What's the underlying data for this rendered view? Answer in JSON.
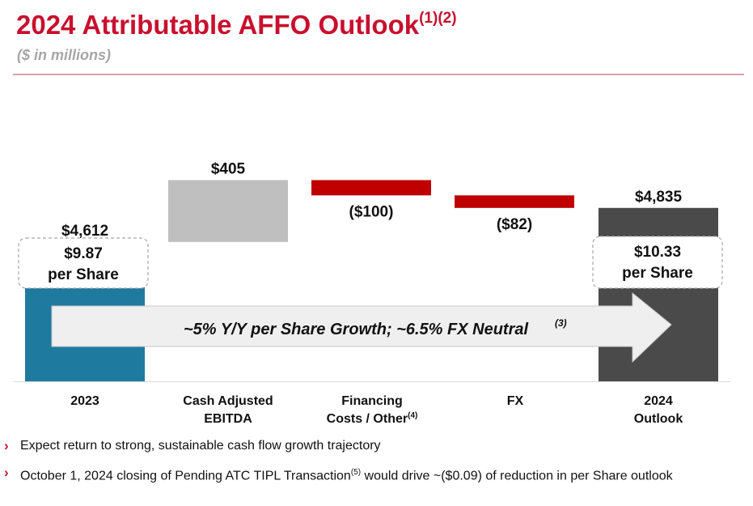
{
  "title": "2024 Attributable AFFO Outlook",
  "title_superscript": "(1)(2)",
  "subtitle": "($ in millions)",
  "chart_data": {
    "type": "bar",
    "subtype": "waterfall",
    "categories": [
      {
        "line1": "2023",
        "line2": "",
        "sup": ""
      },
      {
        "line1": "Cash Adjusted",
        "line2": "EBITDA",
        "sup": ""
      },
      {
        "line1": "Financing",
        "line2": "Costs / Other",
        "sup": "(4)"
      },
      {
        "line1": "FX",
        "line2": "",
        "sup": ""
      },
      {
        "line1": "2024",
        "line2": "Outlook",
        "sup": ""
      }
    ],
    "values": [
      4612,
      405,
      -100,
      -82,
      4835
    ],
    "kinds": [
      "total",
      "increase",
      "decrease",
      "decrease",
      "total"
    ],
    "value_labels": [
      "$4,612",
      "$405",
      "($100)",
      "($82)",
      "$4,835"
    ],
    "colors": [
      "#1f7aa0",
      "#bfbfbf",
      "#c00000",
      "#c00000",
      "#4a4a4a"
    ],
    "per_share": [
      {
        "value": "$9.87",
        "label": "per Share"
      },
      {
        "value": "$10.33",
        "label": "per Share"
      }
    ],
    "growth_callout": {
      "text": "~5% Y/Y per Share Growth; ~6.5% FX Neutral",
      "sup": "(3)"
    },
    "ylim": [
      3700,
      5030
    ],
    "grid": false,
    "legend": "none"
  },
  "bullets": [
    {
      "text": "Expect return to strong, sustainable cash flow growth trajectory",
      "sup": "",
      "text_after": ""
    },
    {
      "text": "October 1, 2024 closing of Pending ATC TIPL Transaction",
      "sup": "(5)",
      "text_after": " would drive ~($0.09) of reduction in per Share outlook"
    }
  ]
}
